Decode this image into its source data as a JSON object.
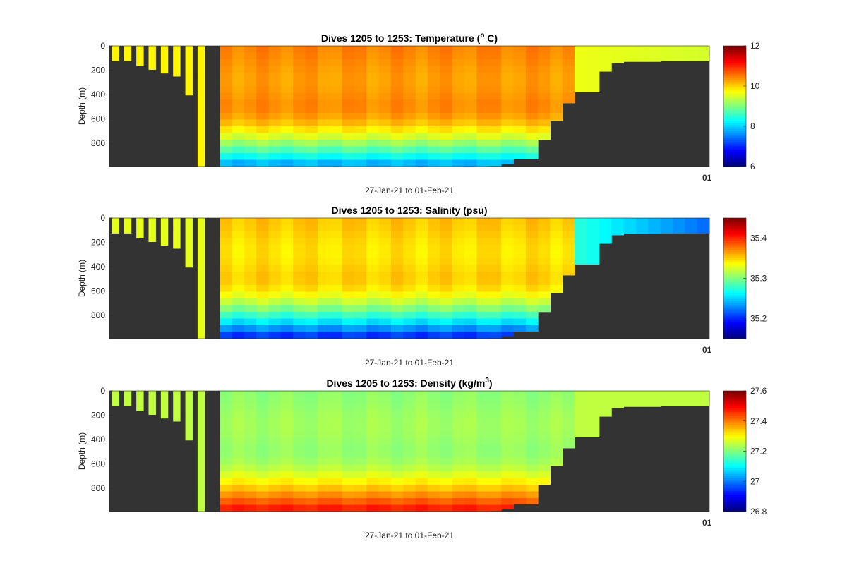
{
  "figure": {
    "background": "#ffffff",
    "land_color": "#333333"
  },
  "chart_data": [
    {
      "type": "heatmap",
      "title_parts": {
        "pre": "Dives 1205 to 1253: Temperature (",
        "sup": "o",
        "post": " C)"
      },
      "xlabel": "27-Jan-21 to 01-Feb-21",
      "ylabel": "Depth (m)",
      "y_ticks": [
        "0",
        "200",
        "400",
        "600",
        "800"
      ],
      "ylim": [
        0,
        990
      ],
      "y_reversed": true,
      "x_end_tick": "01",
      "colormap": "jet",
      "colorbar": {
        "min": 6,
        "max": 12,
        "ticks": [
          "6",
          "8",
          "10",
          "12"
        ]
      },
      "profiles": {
        "count": 49,
        "max_depth_per_dive": [
          125,
          125,
          165,
          195,
          225,
          250,
          405,
          990,
          0,
          990,
          990,
          990,
          990,
          990,
          990,
          990,
          990,
          990,
          990,
          990,
          990,
          990,
          990,
          990,
          990,
          990,
          990,
          990,
          990,
          990,
          990,
          985,
          970,
          930,
          930,
          770,
          615,
          470,
          380,
          380,
          210,
          140,
          130,
          130,
          130,
          125,
          125,
          125,
          125
        ],
        "surface_value": 9.8,
        "deep_value": 7.6,
        "core_value": 10.4,
        "shelf_value": 9.5
      }
    },
    {
      "type": "heatmap",
      "title_parts": {
        "pre": "Dives 1205 to 1253: Salinity (psu)",
        "sup": "",
        "post": ""
      },
      "xlabel": "27-Jan-21 to 01-Feb-21",
      "ylabel": "Depth (m)",
      "y_ticks": [
        "0",
        "200",
        "400",
        "600",
        "800"
      ],
      "ylim": [
        0,
        990
      ],
      "y_reversed": true,
      "x_end_tick": "01",
      "colormap": "jet",
      "colorbar": {
        "min": 35.15,
        "max": 35.45,
        "ticks": [
          "35.2",
          "35.3",
          "35.4"
        ]
      },
      "profiles": {
        "count": 49,
        "max_depth_per_dive": [
          125,
          125,
          165,
          195,
          225,
          250,
          405,
          990,
          0,
          990,
          990,
          990,
          990,
          990,
          990,
          990,
          990,
          990,
          990,
          990,
          990,
          990,
          990,
          990,
          990,
          990,
          990,
          990,
          990,
          990,
          990,
          985,
          970,
          930,
          930,
          770,
          615,
          470,
          380,
          380,
          210,
          140,
          130,
          130,
          130,
          125,
          125,
          125,
          125
        ],
        "surface_value": 35.33,
        "deep_value": 35.19,
        "core_value": 35.35,
        "shelf_value": 35.22
      }
    },
    {
      "type": "heatmap",
      "title_parts": {
        "pre": "Dives 1205 to 1253: Density (kg/m",
        "sup": "3",
        "post": ")"
      },
      "xlabel": "27-Jan-21 to 01-Feb-21",
      "ylabel": "Depth (m)",
      "y_ticks": [
        "0",
        "200",
        "400",
        "600",
        "800"
      ],
      "ylim": [
        0,
        990
      ],
      "y_reversed": true,
      "x_end_tick": "01",
      "colormap": "jet",
      "colorbar": {
        "min": 26.8,
        "max": 27.6,
        "ticks": [
          "26.8",
          "27",
          "27.2",
          "27.4",
          "27.6"
        ]
      },
      "profiles": {
        "count": 49,
        "max_depth_per_dive": [
          125,
          125,
          165,
          195,
          225,
          250,
          405,
          990,
          0,
          990,
          990,
          990,
          990,
          990,
          990,
          990,
          990,
          990,
          990,
          990,
          990,
          990,
          990,
          990,
          990,
          990,
          990,
          990,
          990,
          990,
          990,
          985,
          970,
          930,
          930,
          770,
          615,
          470,
          380,
          380,
          210,
          140,
          130,
          130,
          130,
          125,
          125,
          125,
          125
        ],
        "surface_value": 27.25,
        "deep_value": 27.5,
        "core_value": 27.22,
        "shelf_value": 27.25
      }
    }
  ]
}
